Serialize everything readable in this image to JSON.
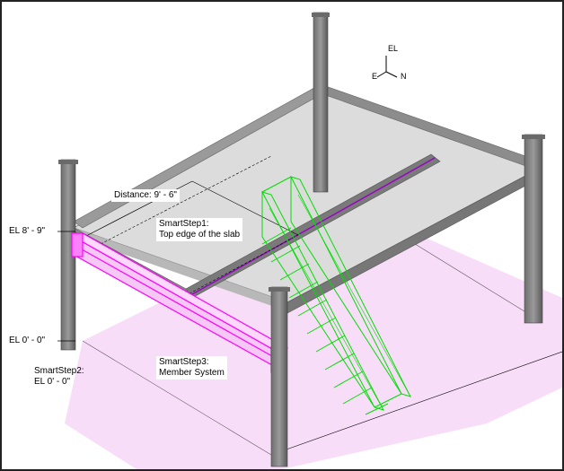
{
  "title": "",
  "labels": {
    "distance": "Distance: 9' - 6\"",
    "smartstep1_line1": "SmartStep1:",
    "smartstep1_line2": "Top edge of the slab",
    "el_upper": "EL 8' - 9\"",
    "el_lower": "EL 0' - 0\"",
    "smartstep2_line1": "SmartStep2:",
    "smartstep2_line2": "EL 0' - 0\"",
    "smartstep3_line1": "SmartStep3:",
    "smartstep3_line2": "Member System"
  },
  "compass": {
    "up": "EL",
    "west": "E",
    "east": "N"
  },
  "colors": {
    "steel": "#808080",
    "steel_dark": "#555555",
    "slab": "#d8d8d8",
    "floor": "#f6d6f6",
    "selected_member": "#ff00ff",
    "stair": "#00e000",
    "dimension": "#000000"
  }
}
